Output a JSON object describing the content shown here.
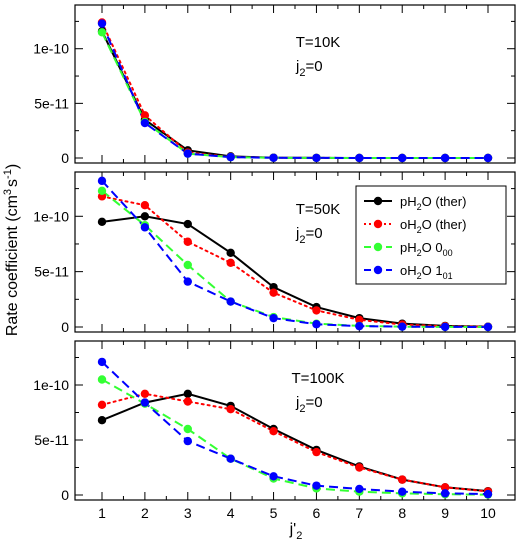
{
  "chart_data": [
    {
      "type": "line",
      "panel": "top",
      "x": [
        1,
        2,
        3,
        4,
        5,
        6,
        7,
        8,
        9,
        10
      ],
      "ylim": [
        0,
        1.4e-10
      ],
      "yticks": [
        0,
        5e-11,
        1e-10
      ],
      "ytick_labels": [
        "0",
        "5e-11",
        "1e-10"
      ],
      "annotation_lines": [
        "T=10K",
        "j",
        "2",
        "=0"
      ],
      "series": [
        {
          "key": "pH2O_ther",
          "values": [
            1.16e-10,
            3.5e-11,
            7e-12,
            1.5e-12,
            3e-13,
            1e-13,
            0,
            0,
            0,
            0
          ]
        },
        {
          "key": "oH2O_ther",
          "values": [
            1.24e-10,
            3.9e-11,
            5e-12,
            1e-12,
            2e-13,
            1e-13,
            0,
            0,
            0,
            0
          ]
        },
        {
          "key": "pH2O_00",
          "values": [
            1.15e-10,
            3.3e-11,
            4e-12,
            8e-13,
            2e-13,
            1e-13,
            0,
            0,
            0,
            0
          ]
        },
        {
          "key": "oH2O_101",
          "values": [
            1.23e-10,
            3.2e-11,
            4e-12,
            8e-13,
            2e-13,
            1e-13,
            0,
            0,
            0,
            0
          ]
        }
      ]
    },
    {
      "type": "line",
      "panel": "middle",
      "x": [
        1,
        2,
        3,
        4,
        5,
        6,
        7,
        8,
        9,
        10
      ],
      "ylim": [
        0,
        1.4e-10
      ],
      "yticks": [
        0,
        5e-11,
        1e-10
      ],
      "ytick_labels": [
        "0",
        "5e-11",
        "1e-10"
      ],
      "annotation_lines": [
        "T=50K",
        "j",
        "2",
        "=0"
      ],
      "series": [
        {
          "key": "pH2O_ther",
          "values": [
            9.5e-11,
            1e-10,
            9.3e-11,
            6.7e-11,
            3.6e-11,
            1.8e-11,
            8e-12,
            3e-12,
            1e-12,
            3e-13
          ]
        },
        {
          "key": "oH2O_ther",
          "values": [
            1.18e-10,
            1.1e-10,
            7.7e-11,
            5.8e-11,
            3.1e-11,
            1.5e-11,
            6.5e-12,
            2.2e-12,
            7e-13,
            2e-13
          ]
        },
        {
          "key": "pH2O_00",
          "values": [
            1.23e-10,
            9.2e-11,
            5.6e-11,
            2.3e-11,
            9e-12,
            3e-12,
            1e-12,
            3e-13,
            1e-13,
            0
          ]
        },
        {
          "key": "oH2O_101",
          "values": [
            1.32e-10,
            9e-11,
            4.1e-11,
            2.3e-11,
            8e-12,
            2.5e-12,
            8e-13,
            3e-13,
            1e-13,
            0
          ]
        }
      ]
    },
    {
      "type": "line",
      "panel": "bottom",
      "x": [
        1,
        2,
        3,
        4,
        5,
        6,
        7,
        8,
        9,
        10
      ],
      "ylim": [
        0,
        1.4e-10
      ],
      "yticks": [
        0,
        5e-11,
        1e-10
      ],
      "ytick_labels": [
        "0",
        "5e-11",
        "1e-10"
      ],
      "xticks": [
        1,
        2,
        3,
        4,
        5,
        6,
        7,
        8,
        9,
        10
      ],
      "annotation_lines": [
        "T=100K",
        "j",
        "2",
        "=0"
      ],
      "series": [
        {
          "key": "pH2O_ther",
          "values": [
            6.8e-11,
            8.4e-11,
            9.2e-11,
            8.1e-11,
            6e-11,
            4.1e-11,
            2.6e-11,
            1.4e-11,
            7e-12,
            3.5e-12
          ]
        },
        {
          "key": "oH2O_ther",
          "values": [
            8.2e-11,
            9.2e-11,
            8.5e-11,
            7.8e-11,
            5.8e-11,
            3.9e-11,
            2.5e-11,
            1.4e-11,
            7e-12,
            3.2e-12
          ]
        },
        {
          "key": "pH2O_00",
          "values": [
            1.05e-10,
            8.3e-11,
            6e-11,
            3.3e-11,
            1.5e-11,
            6e-12,
            3e-12,
            1.5e-12,
            7e-13,
            3e-13
          ]
        },
        {
          "key": "oH2O_101",
          "values": [
            1.21e-10,
            8.4e-11,
            4.9e-11,
            3.3e-11,
            1.7e-11,
            8.5e-12,
            5.5e-12,
            3e-12,
            1.5e-12,
            8e-13
          ]
        }
      ]
    }
  ],
  "series_styles": {
    "pH2O_ther": {
      "color": "#000000",
      "dash": "solid"
    },
    "oH2O_ther": {
      "color": "#ff0000",
      "dash": "dotted"
    },
    "pH2O_00": {
      "color": "#33ff33",
      "dash": "dashed"
    },
    "oH2O_101": {
      "color": "#0000ff",
      "dash": "dashed"
    }
  },
  "legend": {
    "location": "middle panel, right",
    "entries": [
      {
        "key": "pH2O_ther",
        "parts": [
          "pH",
          "2",
          "O (ther)"
        ]
      },
      {
        "key": "oH2O_ther",
        "parts": [
          "oH",
          "2",
          "O (ther)"
        ]
      },
      {
        "key": "pH2O_00",
        "parts": [
          "pH",
          "2",
          "O 0",
          "00"
        ]
      },
      {
        "key": "oH2O_101",
        "parts": [
          "oH",
          "2",
          "O 1",
          "01"
        ]
      }
    ]
  },
  "y_axis_label_parts": [
    "Rate coefficient (cm",
    "3",
    "s",
    "-1",
    ")"
  ],
  "x_axis_label_parts": [
    "j'",
    "2"
  ]
}
